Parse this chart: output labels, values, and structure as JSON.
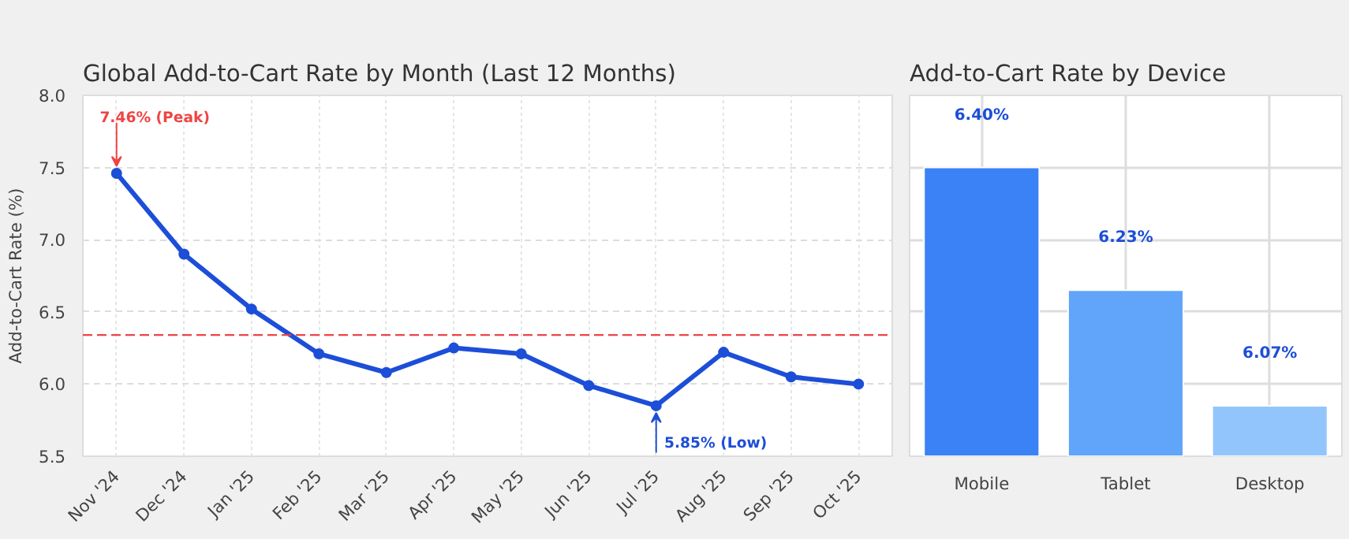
{
  "chart_data": [
    {
      "type": "line",
      "title": "Global Add-to-Cart Rate by Month (Last 12 Months)",
      "ylabel": "Add-to-Cart Rate (%)",
      "categories": [
        "Nov '24",
        "Dec '24",
        "Jan '25",
        "Feb '25",
        "Mar '25",
        "Apr '25",
        "May '25",
        "Jun '25",
        "Jul '25",
        "Aug '25",
        "Sep '25",
        "Oct '25"
      ],
      "series": [
        {
          "color": "#1d4ed8",
          "values": [
            7.46,
            6.9,
            6.52,
            6.21,
            6.08,
            6.25,
            6.21,
            5.99,
            5.85,
            6.22,
            6.05,
            6.0
          ]
        }
      ],
      "ylim": [
        5.5,
        8.0
      ],
      "yticks": [
        5.5,
        {
          "value": 6,
          "label": "6.0"
        },
        6.5,
        {
          "value": 7,
          "label": "7.0"
        },
        7.5,
        {
          "value": 8,
          "label": "8.0"
        }
      ],
      "grid": true,
      "marker": "circle",
      "line_style": "solid",
      "ref_lines": [
        {
          "axis": "y",
          "value": 6.34,
          "color": "#ef4444",
          "line_style": "dashed"
        }
      ],
      "annotations": [
        {
          "text": "7.46% (Peak)",
          "x": "Nov '24",
          "y": 7.46
        },
        {
          "text": "5.85% (Low)",
          "x": "Jul '25",
          "y": 5.85
        }
      ]
    },
    {
      "type": "bar",
      "title": "Add-to-Cart Rate by Device",
      "categories": [
        "Mobile",
        "Tablet",
        "Desktop"
      ],
      "values": [
        6.4,
        6.23,
        6.07
      ],
      "colors": [
        "#3b82f6",
        "#60a5fa",
        "#93c5fd"
      ],
      "value_labels": [
        "6.40%",
        "6.23%",
        "6.07%"
      ],
      "ylim": [
        6.0,
        6.5
      ],
      "yticks": [
        {
          "value": 6.1,
          "label": null
        },
        {
          "value": 6.2,
          "label": null
        },
        {
          "value": 6.3,
          "label": null
        },
        {
          "value": 6.4,
          "label": null
        }
      ],
      "tick_labels": "x",
      "grid": true
    }
  ]
}
